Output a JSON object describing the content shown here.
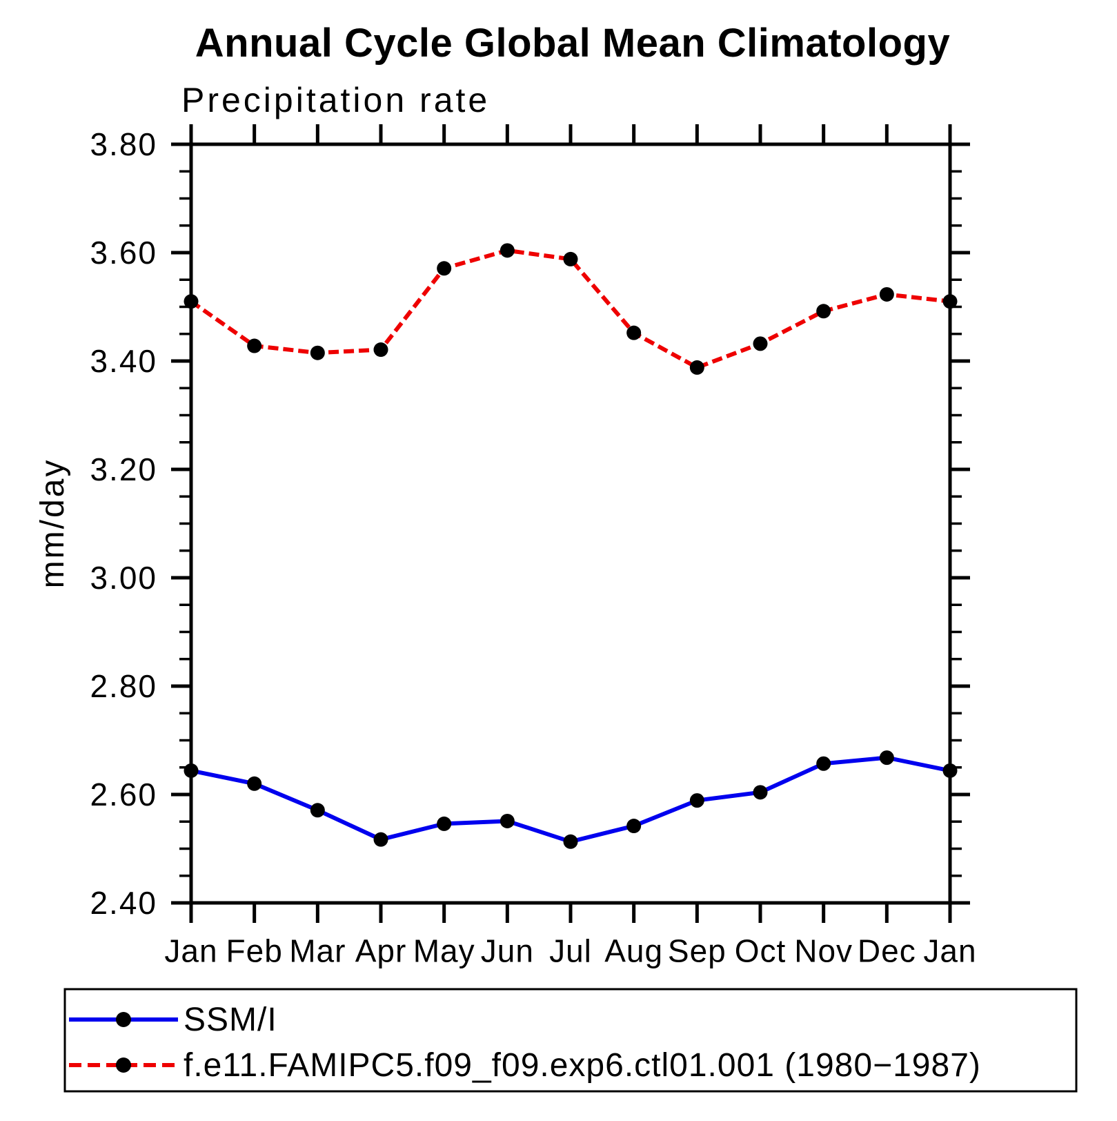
{
  "header": {
    "title": "Annual Cycle Global Mean Climatology",
    "subtitle": "Precipitation rate"
  },
  "chart_data": {
    "type": "line",
    "title": "Annual Cycle Global Mean Climatology",
    "subtitle": "Precipitation rate",
    "xlabel": "",
    "ylabel": "mm/day",
    "categories": [
      "Jan",
      "Feb",
      "Mar",
      "Apr",
      "May",
      "Jun",
      "Jul",
      "Aug",
      "Sep",
      "Oct",
      "Nov",
      "Dec",
      "Jan"
    ],
    "ylim": [
      2.4,
      3.8
    ],
    "y_major_step": 0.2,
    "y_minor_step": 0.05,
    "y_tick_labels": [
      "2.40",
      "2.60",
      "2.80",
      "3.00",
      "3.20",
      "3.40",
      "3.60",
      "3.80"
    ],
    "grid": false,
    "legend_position": "bottom-left-box",
    "series": [
      {
        "name": "SSM/I",
        "color": "#0000ee",
        "line_style": "solid",
        "marker": "circle",
        "marker_color": "#000000",
        "values": [
          2.644,
          2.62,
          2.571,
          2.517,
          2.546,
          2.551,
          2.513,
          2.542,
          2.589,
          2.604,
          2.657,
          2.668,
          2.644
        ]
      },
      {
        "name": "f.e11.FAMIPC5.f09_f09.exp6.ctl01.001 (1980−1987)",
        "color": "#ee0000",
        "line_style": "dashed",
        "marker": "circle",
        "marker_color": "#000000",
        "values": [
          3.51,
          3.428,
          3.415,
          3.421,
          3.571,
          3.604,
          3.588,
          3.452,
          3.388,
          3.432,
          3.492,
          3.523,
          3.51
        ]
      }
    ],
    "colors": {
      "axis": "#000000",
      "background": "#ffffff",
      "series_blue": "#0000ee",
      "series_red": "#ee0000"
    }
  }
}
